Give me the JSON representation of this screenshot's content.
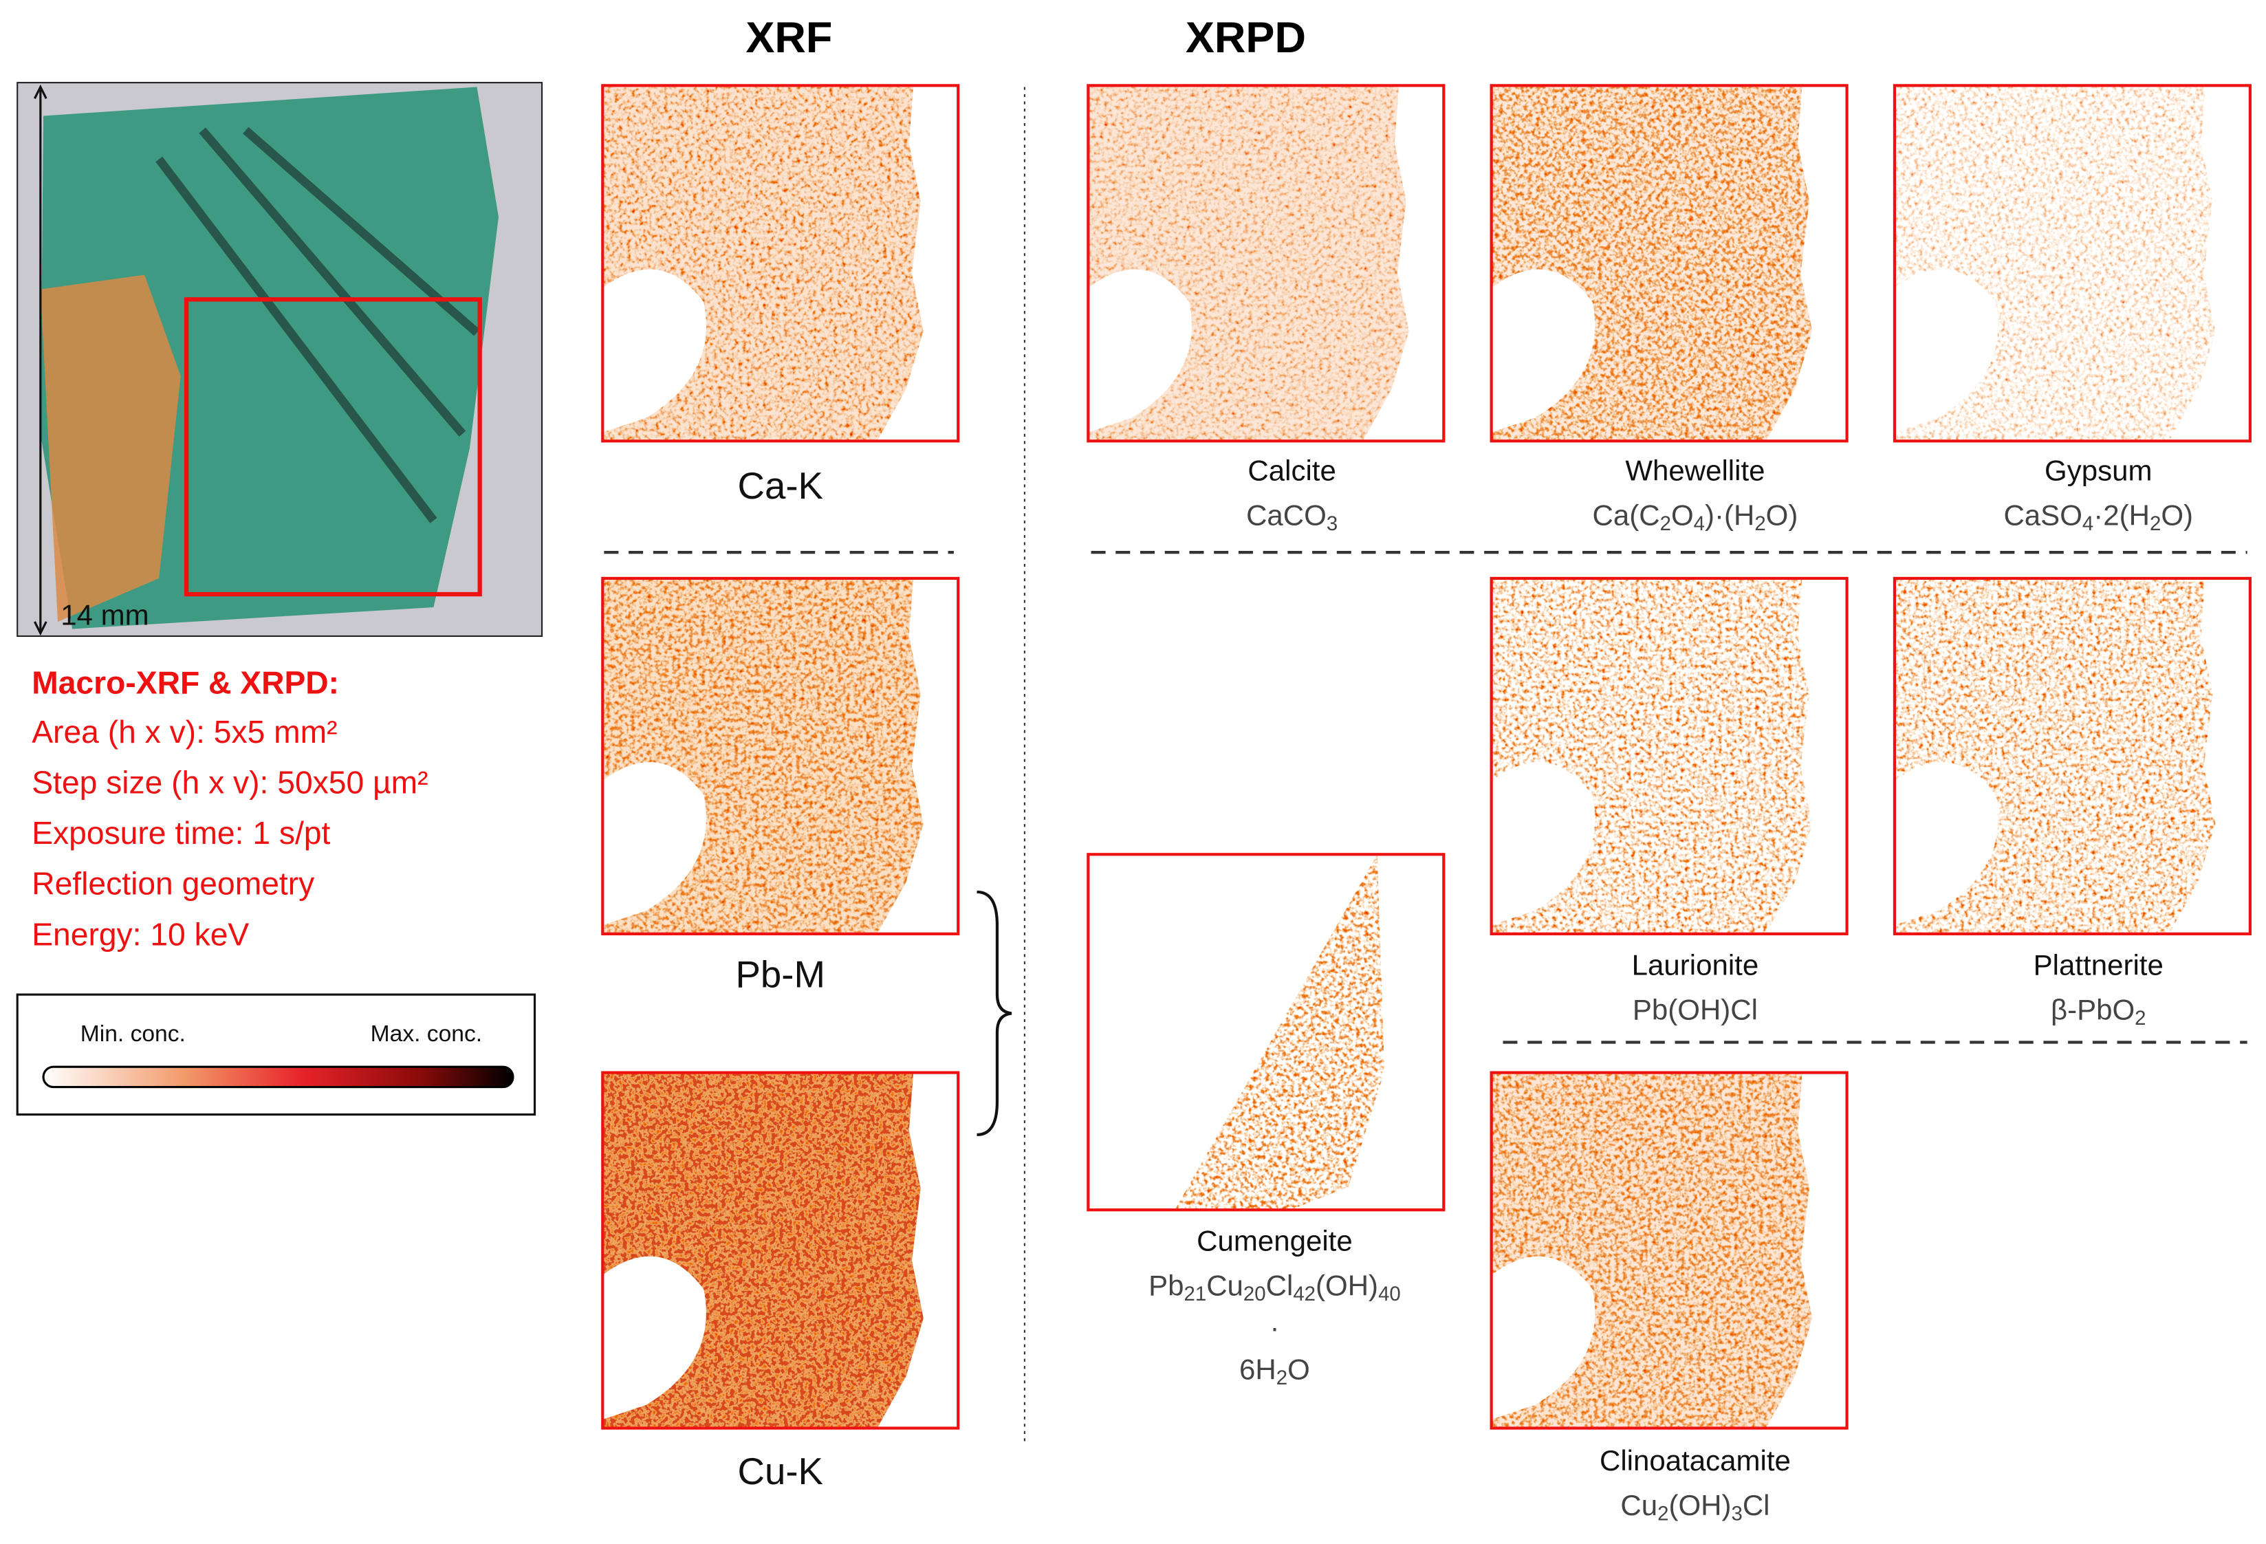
{
  "photo": {
    "scale_label": "14 mm"
  },
  "info": {
    "title": "Macro-XRF & XRPD:",
    "lines": [
      "Area (h x v): 5x5 mm²",
      "Step size (h x v): 50x50 µm²",
      "Exposure time: 1 s/pt",
      "Reflection geometry",
      "Energy: 10 keV"
    ]
  },
  "colorbar": {
    "min_label": "Min. conc.",
    "max_label": "Max. conc."
  },
  "xrf": {
    "title": "XRF",
    "maps": [
      {
        "label": "Ca-K"
      },
      {
        "label": "Pb-M"
      },
      {
        "label": "Cu-K"
      }
    ]
  },
  "xrpd": {
    "title": "XRPD",
    "maps": [
      {
        "name": "Calcite",
        "formula": [
          [
            {
              "text": "CaCO"
            },
            {
              "sub": "3"
            }
          ]
        ]
      },
      {
        "name": "Whewellite",
        "formula": [
          [
            {
              "text": "Ca(C"
            },
            {
              "sub": "2"
            },
            {
              "text": "O"
            },
            {
              "sub": "4"
            },
            {
              "text": ")·(H"
            },
            {
              "sub": "2"
            },
            {
              "text": "O)"
            }
          ]
        ]
      },
      {
        "name": "Gypsum",
        "formula": [
          [
            {
              "text": "CaSO"
            },
            {
              "sub": "4"
            },
            {
              "text": "·2(H"
            },
            {
              "sub": "2"
            },
            {
              "text": "O)"
            }
          ]
        ]
      },
      {
        "name": "Laurionite",
        "formula": [
          [
            {
              "text": "Pb(OH)Cl"
            }
          ]
        ]
      },
      {
        "name": "Plattnerite",
        "formula": [
          [
            {
              "text": "β-PbO"
            },
            {
              "sub": "2"
            }
          ]
        ]
      },
      {
        "name": "Cumengeite",
        "formula": [
          [
            {
              "text": "Pb"
            },
            {
              "sub": "21"
            },
            {
              "text": "Cu"
            },
            {
              "sub": "20"
            },
            {
              "text": "Cl"
            },
            {
              "sub": "42"
            },
            {
              "text": "(OH)"
            },
            {
              "sub": "40"
            }
          ],
          [
            {
              "text": "·"
            }
          ],
          [
            {
              "text": "6H"
            },
            {
              "sub": "2"
            },
            {
              "text": "O"
            }
          ]
        ]
      },
      {
        "name": "Clinoatacamite",
        "formula": [
          [
            {
              "text": "Cu"
            },
            {
              "sub": "2"
            },
            {
              "text": "(OH)"
            },
            {
              "sub": "3"
            },
            {
              "text": "Cl"
            }
          ]
        ]
      }
    ]
  }
}
